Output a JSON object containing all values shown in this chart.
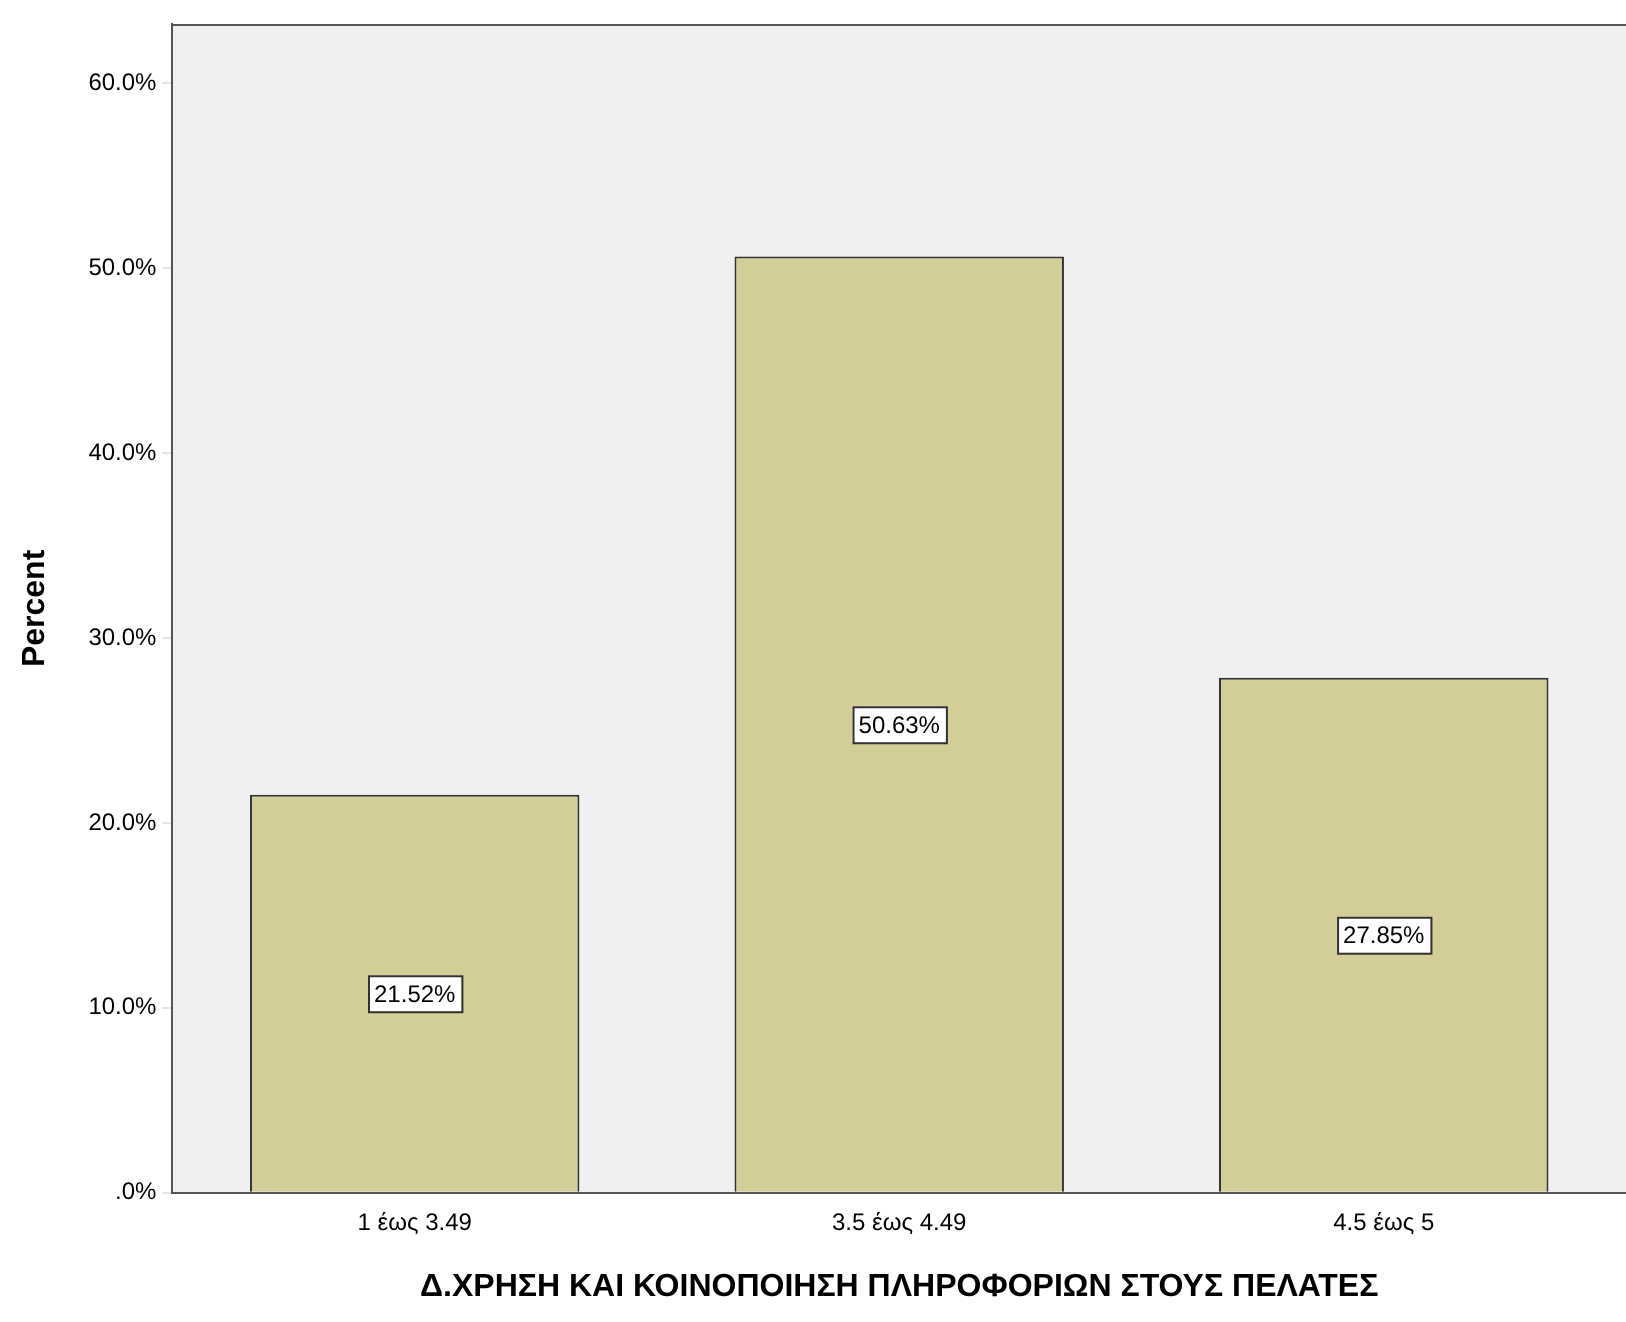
{
  "chart_data": {
    "type": "bar",
    "xlabel": "Δ.ΧΡΗΣΗ ΚΑΙ ΚΟΙΝΟΠΟΙΗΣΗ ΠΛΗΡΟΦΟΡΙΩΝ ΣΤΟΥΣ ΠΕΛΑΤΕΣ",
    "ylabel": "Percent",
    "categories": [
      "1 έως 3.49",
      "3.5 έως 4.49",
      "4.5 έως 5"
    ],
    "values": [
      21.52,
      50.63,
      27.85
    ],
    "value_labels": [
      "21.52%",
      "50.63%",
      "27.85%"
    ],
    "color": "#d3ce97",
    "ylim": [
      0,
      63.2
    ],
    "yticks": [
      {
        "value": 0,
        "label": ".0%"
      },
      {
        "value": 10,
        "label": "10.0%"
      },
      {
        "value": 20,
        "label": "20.0%"
      },
      {
        "value": 30,
        "label": "30.0%"
      },
      {
        "value": 40,
        "label": "40.0%"
      },
      {
        "value": 50,
        "label": "50.0%"
      },
      {
        "value": 60,
        "label": "60.0%"
      }
    ],
    "grid": false
  }
}
